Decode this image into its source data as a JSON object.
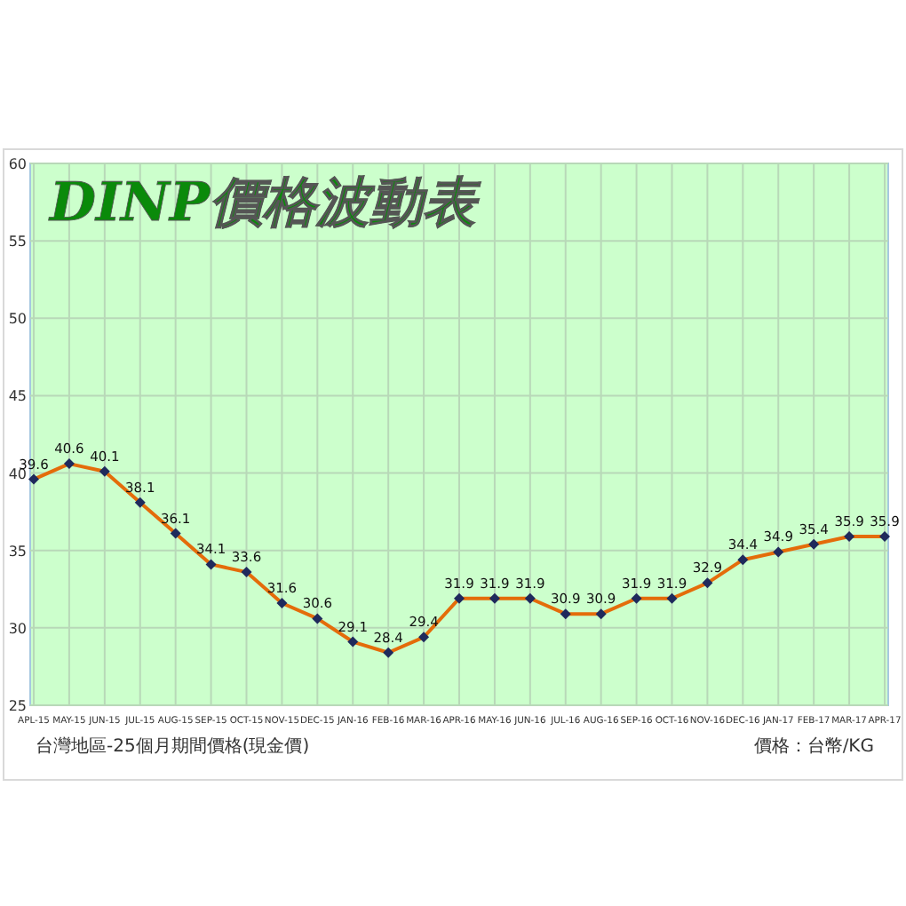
{
  "chart_data": {
    "type": "line",
    "title": "DINP價格波動表",
    "categories": [
      "APL-15",
      "MAY-15",
      "JUN-15",
      "JUL-15",
      "AUG-15",
      "SEP-15",
      "OCT-15",
      "NOV-15",
      "DEC-15",
      "JAN-16",
      "FEB-16",
      "MAR-16",
      "APR-16",
      "MAY-16",
      "JUN-16",
      "JUL-16",
      "AUG-16",
      "SEP-16",
      "OCT-16",
      "NOV-16",
      "DEC-16",
      "JAN-17",
      "FEB-17",
      "MAR-17",
      "APR-17"
    ],
    "series": [
      {
        "color": "#e46c0a",
        "values": [
          39.6,
          40.6,
          40.1,
          38.1,
          36.1,
          34.1,
          33.6,
          31.6,
          30.6,
          29.1,
          28.4,
          29.4,
          31.9,
          31.9,
          31.9,
          30.9,
          30.9,
          31.9,
          31.9,
          32.9,
          34.4,
          34.9,
          35.4,
          35.9,
          35.9
        ]
      }
    ],
    "ylim": [
      25,
      60
    ],
    "yticks": [
      25,
      30,
      35,
      40,
      45,
      50,
      55,
      60
    ],
    "grid": true,
    "marker": "diamond",
    "data_labels": true,
    "annotations": [
      "台灣地區-25個月期間價格(現金價)",
      "價格：台幣/KG"
    ]
  }
}
